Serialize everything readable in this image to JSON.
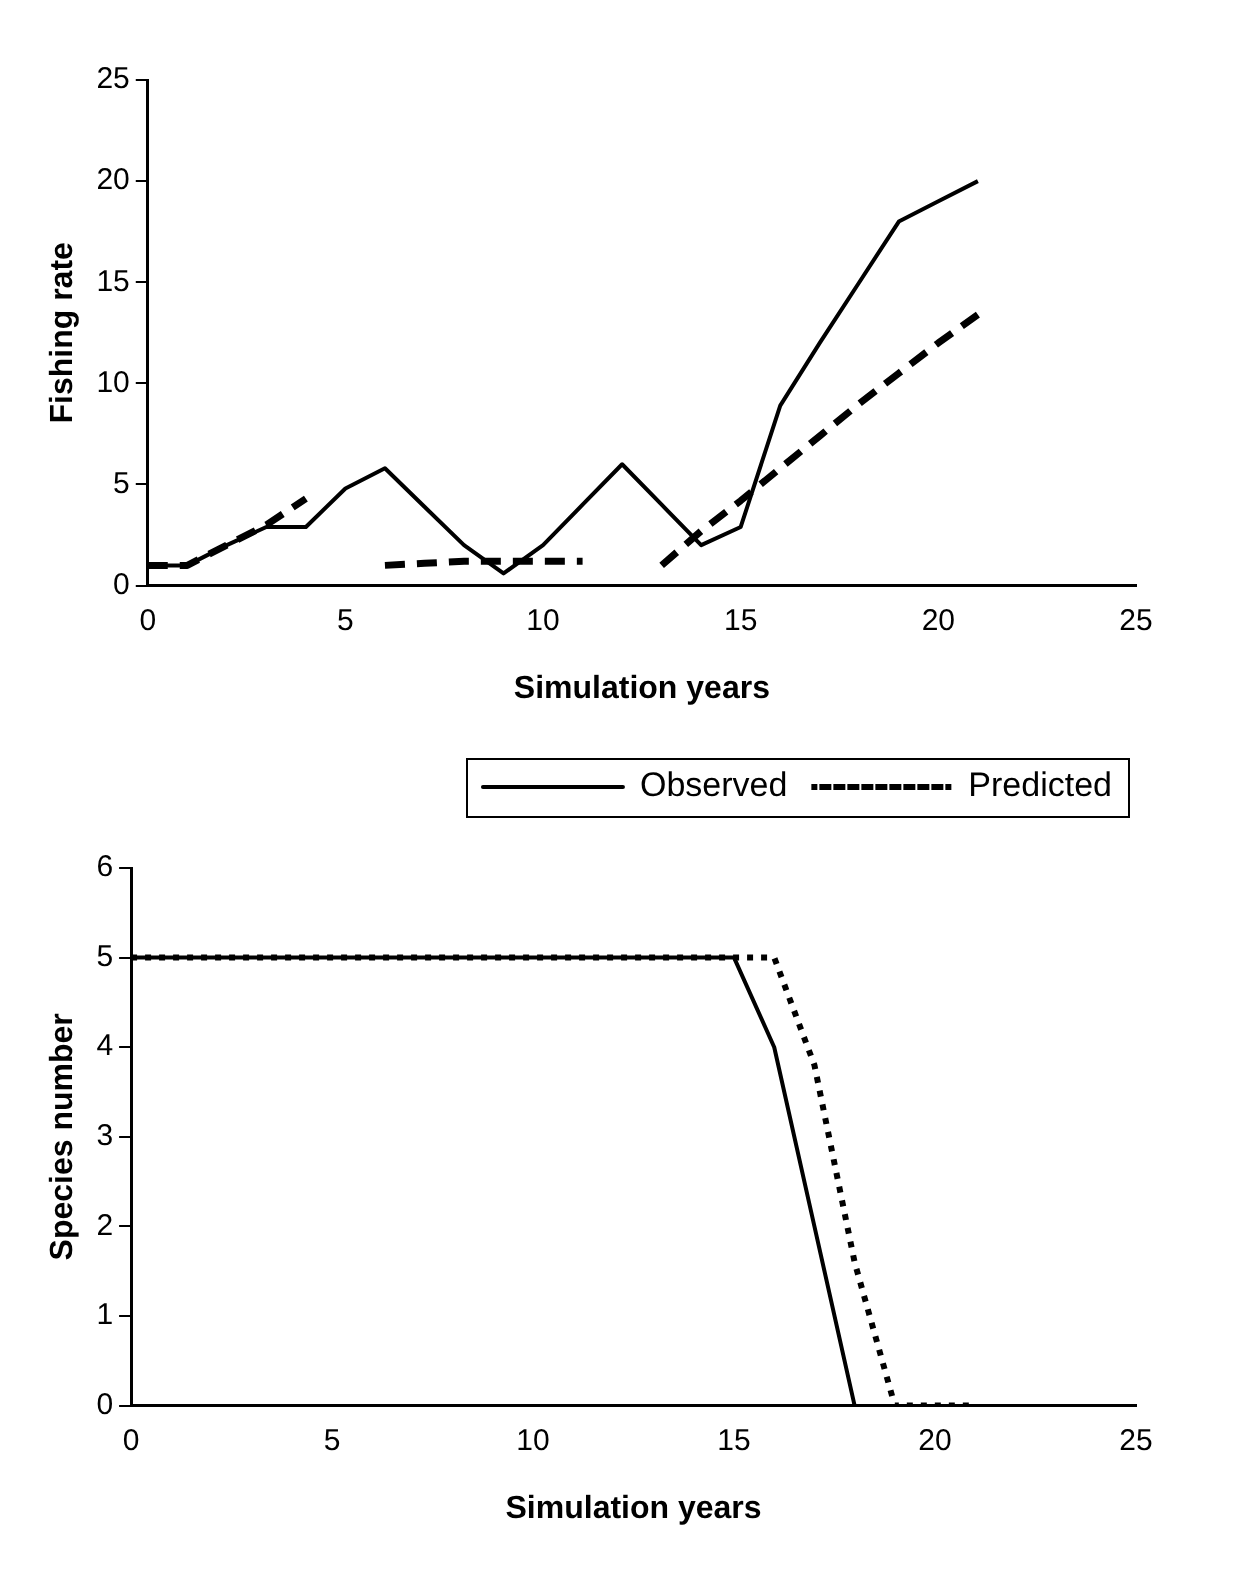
{
  "chart_data": [
    {
      "type": "line",
      "xlabel": "Simulation years",
      "ylabel": "Fishing rate",
      "x": [
        0,
        1,
        2,
        3,
        4,
        5,
        6,
        7,
        8,
        9,
        10,
        11,
        12,
        13,
        14,
        15,
        16,
        17,
        18,
        19,
        20,
        21
      ],
      "series": [
        {
          "color": "#000000",
          "line_style": "solid",
          "values": [
            1,
            1,
            2,
            2.9,
            2.9,
            4.8,
            5.8,
            3.9,
            2,
            0.6,
            2,
            4,
            6,
            4,
            2,
            2.9,
            8.9,
            12,
            15,
            18,
            19,
            20
          ]
        },
        {
          "color": "#000000",
          "line_style": "dashed",
          "values": [
            1,
            1,
            2,
            3,
            4.3,
            null,
            1,
            1.1,
            1.2,
            1.2,
            1.2,
            1.2,
            null,
            1,
            2.7,
            4.2,
            5.8,
            7.4,
            9,
            10.5,
            12,
            13.4
          ]
        }
      ],
      "xlim": [
        0,
        25
      ],
      "xticks": [
        0,
        5,
        10,
        15,
        20,
        25
      ],
      "ylim": [
        0,
        25
      ],
      "yticks": [
        0,
        5,
        10,
        15,
        20,
        25
      ],
      "grid": false,
      "marker": "none",
      "legend": false
    },
    {
      "type": "line",
      "xlabel": "Simulation years",
      "ylabel": "Species number",
      "x": [
        0,
        1,
        2,
        3,
        4,
        5,
        6,
        7,
        8,
        9,
        10,
        11,
        12,
        13,
        14,
        15,
        16,
        17,
        18,
        19,
        20,
        21
      ],
      "series": [
        {
          "name": "Observed",
          "color": "#000000",
          "line_style": "solid",
          "values": [
            5,
            5,
            5,
            5,
            5,
            5,
            5,
            5,
            5,
            5,
            5,
            5,
            5,
            5,
            5,
            5,
            4,
            2,
            0,
            null,
            null,
            null
          ]
        },
        {
          "name": "Predicted",
          "color": "#000000",
          "line_style": "dotted",
          "values": [
            5,
            5,
            5,
            5,
            5,
            5,
            5,
            5,
            5,
            5,
            5,
            5,
            5,
            5,
            5,
            5,
            5,
            3.8,
            1.6,
            0,
            0,
            0
          ]
        }
      ],
      "xlim": [
        0,
        25
      ],
      "xticks": [
        0,
        5,
        10,
        15,
        20,
        25
      ],
      "ylim": [
        0,
        6
      ],
      "yticks": [
        0,
        1,
        2,
        3,
        4,
        5,
        6
      ],
      "grid": false,
      "marker": "none",
      "legend": "top right"
    }
  ]
}
